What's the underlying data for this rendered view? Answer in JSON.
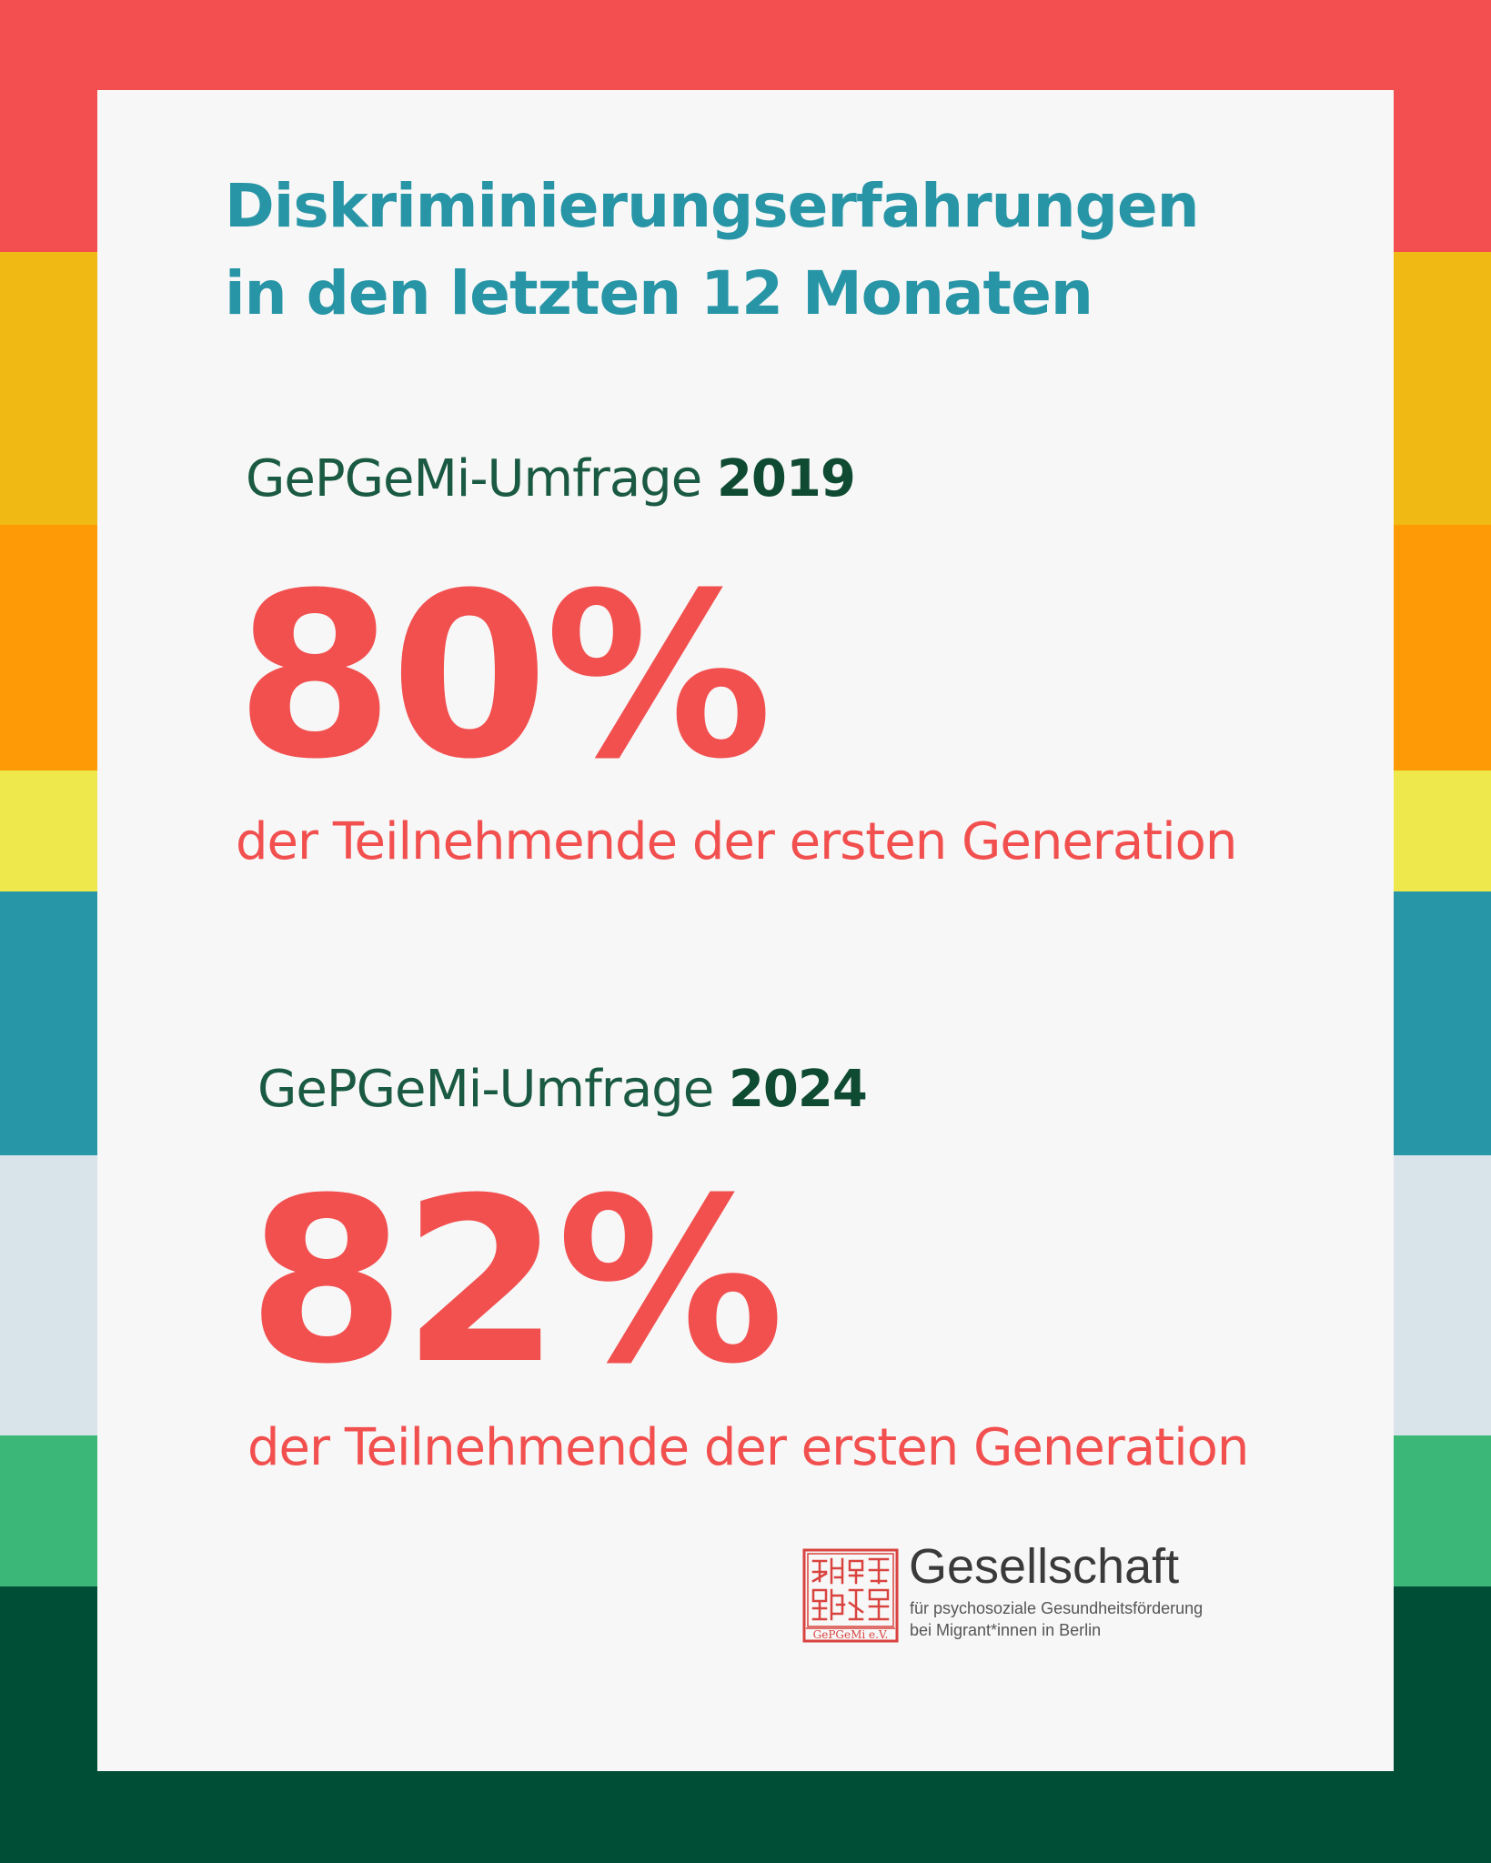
{
  "colors": {
    "stripes": [
      "#f44f50",
      "#f0b914",
      "#fd9a06",
      "#eee84d",
      "#2796a6",
      "#d9e4ea",
      "#3bb878",
      "#004e35"
    ],
    "title": "#2795a6",
    "accent": "#f24f4f",
    "dark_green": "#0f4a33",
    "card": "#f7f7f7"
  },
  "title": {
    "line1": "Diskriminierungserfahrungen",
    "line2": "in den letzten 12 Monaten"
  },
  "surveys": [
    {
      "label": "GePGeMi-Umfrage",
      "year": "2019",
      "value": "80%",
      "description": "der Teilnehmende der ersten Generation"
    },
    {
      "label": "GePGeMi-Umfrage",
      "year": "2024",
      "value": "82%",
      "description": "der Teilnehmende der ersten Generation"
    }
  ],
  "logo": {
    "name": "Gesellschaft",
    "line1": "für psychosoziale Gesundheitsförderung",
    "line2": "bei Migrant*innen in Berlin",
    "seal_text": "GePGeMi e.V."
  }
}
